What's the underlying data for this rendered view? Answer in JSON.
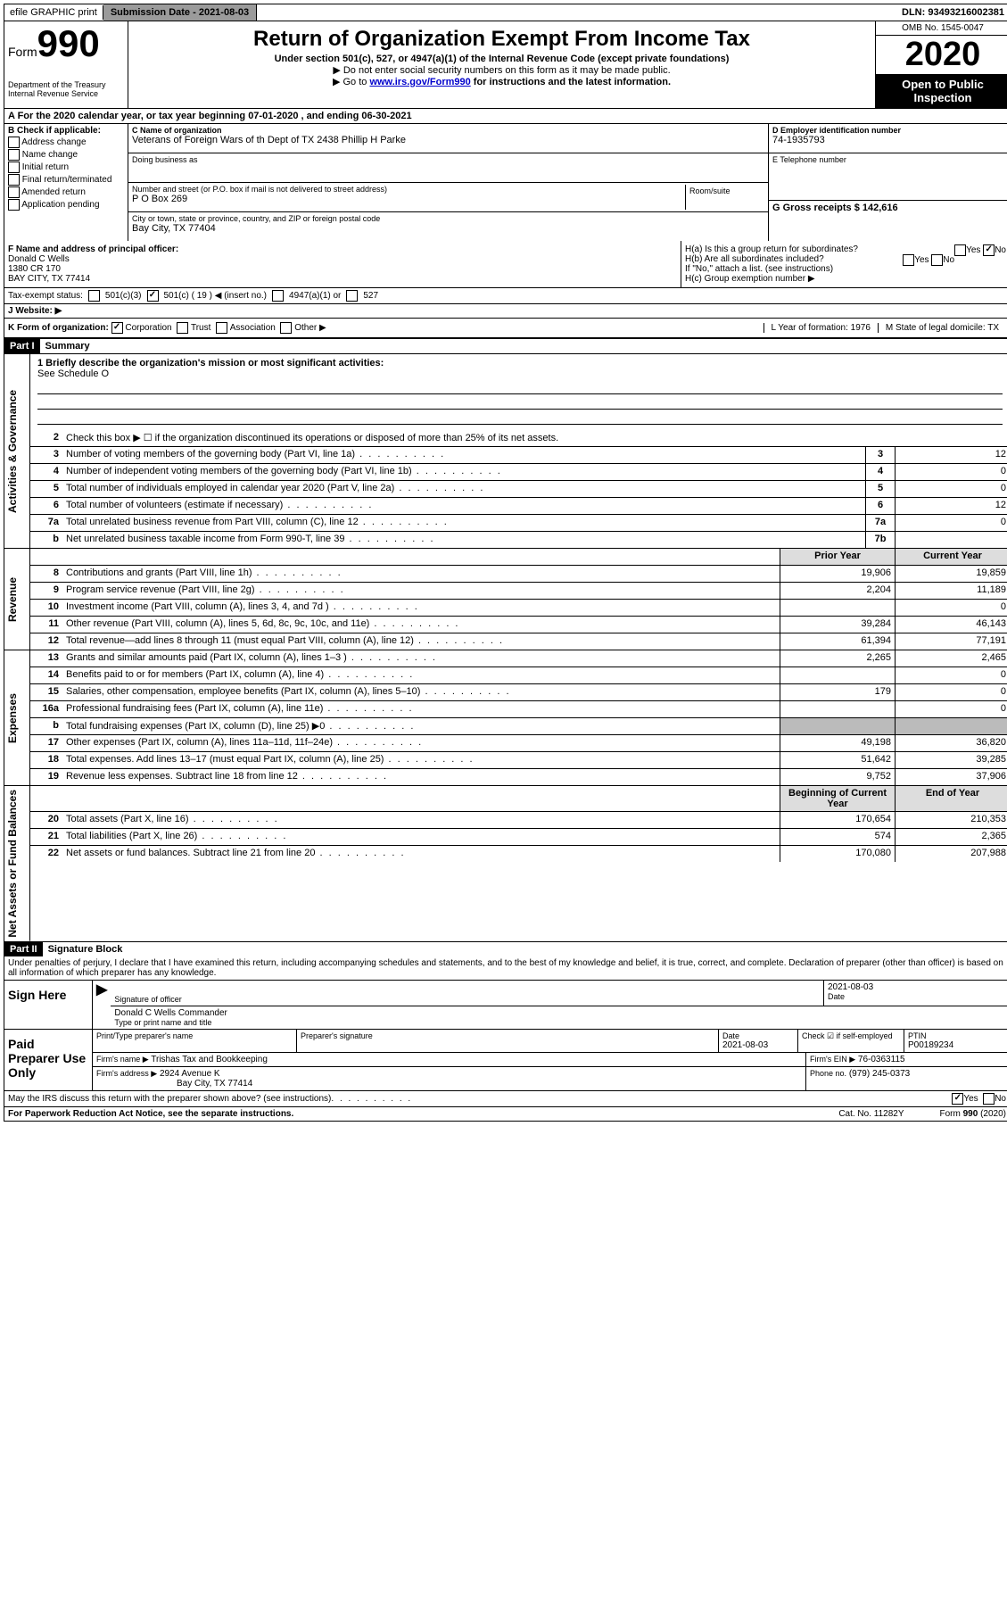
{
  "topbar": {
    "efile": "efile GRAPHIC print",
    "submission_label": "Submission Date - 2021-08-03",
    "dln": "DLN: 93493216002381"
  },
  "header": {
    "form_word": "Form",
    "form_number": "990",
    "title": "Return of Organization Exempt From Income Tax",
    "subtitle": "Under section 501(c), 527, or 4947(a)(1) of the Internal Revenue Code (except private foundations)",
    "note1": "▶ Do not enter social security numbers on this form as it may be made public.",
    "note2_pre": "▶ Go to ",
    "note2_link": "www.irs.gov/Form990",
    "note2_post": " for instructions and the latest information.",
    "omb": "OMB No. 1545-0047",
    "year": "2020",
    "open": "Open to Public Inspection",
    "dept": "Department of the Treasury Internal Revenue Service"
  },
  "line_a": "A For the 2020 calendar year, or tax year beginning 07-01-2020  , and ending 06-30-2021",
  "section_b": {
    "label": "B Check if applicable:",
    "opts": [
      "Address change",
      "Name change",
      "Initial return",
      "Final return/terminated",
      "Amended return",
      "Application pending"
    ]
  },
  "section_c": {
    "name_label": "C Name of organization",
    "name": "Veterans of Foreign Wars of th Dept of TX 2438 Phillip H Parke",
    "dba_label": "Doing business as",
    "addr_label": "Number and street (or P.O. box if mail is not delivered to street address)",
    "room_label": "Room/suite",
    "addr": "P O Box 269",
    "city_label": "City or town, state or province, country, and ZIP or foreign postal code",
    "city": "Bay City, TX  77404"
  },
  "section_d": {
    "ein_label": "D Employer identification number",
    "ein": "74-1935793",
    "tel_label": "E Telephone number",
    "gross_label": "G Gross receipts $ 142,616"
  },
  "section_f": {
    "label": "F  Name and address of principal officer:",
    "name": "Donald C Wells",
    "addr1": "1380 CR 170",
    "addr2": "BAY CITY, TX  77414",
    "ha": "H(a)  Is this a group return for subordinates?",
    "hb": "H(b)  Are all subordinates included?",
    "hb_note": "If \"No,\" attach a list. (see instructions)",
    "hc": "H(c)  Group exemption number ▶",
    "yes": "Yes",
    "no": "No"
  },
  "tax_exempt": {
    "label": "Tax-exempt status:",
    "o1": "501(c)(3)",
    "o2": "501(c) ( 19 ) ◀ (insert no.)",
    "o3": "4947(a)(1) or",
    "o4": "527"
  },
  "website": {
    "label": "J   Website: ▶"
  },
  "k_row": {
    "label": "K Form of organization:",
    "corp": "Corporation",
    "trust": "Trust",
    "assoc": "Association",
    "other": "Other ▶",
    "l": "L Year of formation: 1976",
    "m": "M State of legal domicile: TX"
  },
  "part1": {
    "label": "Part I",
    "title": "Summary",
    "side_gov": "Activities & Governance",
    "side_rev": "Revenue",
    "side_exp": "Expenses",
    "side_net": "Net Assets or Fund Balances",
    "mission_label": "1  Briefly describe the organization's mission or most significant activities:",
    "mission": "See Schedule O",
    "line2": "Check this box ▶ ☐  if the organization discontinued its operations or disposed of more than 25% of its net assets.",
    "rows_single": [
      {
        "n": "3",
        "d": "Number of voting members of the governing body (Part VI, line 1a)",
        "box": "3",
        "v": "12"
      },
      {
        "n": "4",
        "d": "Number of independent voting members of the governing body (Part VI, line 1b)",
        "box": "4",
        "v": "0"
      },
      {
        "n": "5",
        "d": "Total number of individuals employed in calendar year 2020 (Part V, line 2a)",
        "box": "5",
        "v": "0"
      },
      {
        "n": "6",
        "d": "Total number of volunteers (estimate if necessary)",
        "box": "6",
        "v": "12"
      },
      {
        "n": "7a",
        "d": "Total unrelated business revenue from Part VIII, column (C), line 12",
        "box": "7a",
        "v": "0"
      },
      {
        "n": "b",
        "d": "Net unrelated business taxable income from Form 990-T, line 39",
        "box": "7b",
        "v": ""
      }
    ],
    "col_prior": "Prior Year",
    "col_current": "Current Year",
    "col_begin": "Beginning of Current Year",
    "col_end": "End of Year",
    "rows_rev": [
      {
        "n": "8",
        "d": "Contributions and grants (Part VIII, line 1h)",
        "p": "19,906",
        "c": "19,859"
      },
      {
        "n": "9",
        "d": "Program service revenue (Part VIII, line 2g)",
        "p": "2,204",
        "c": "11,189"
      },
      {
        "n": "10",
        "d": "Investment income (Part VIII, column (A), lines 3, 4, and 7d )",
        "p": "",
        "c": "0"
      },
      {
        "n": "11",
        "d": "Other revenue (Part VIII, column (A), lines 5, 6d, 8c, 9c, 10c, and 11e)",
        "p": "39,284",
        "c": "46,143"
      },
      {
        "n": "12",
        "d": "Total revenue—add lines 8 through 11 (must equal Part VIII, column (A), line 12)",
        "p": "61,394",
        "c": "77,191"
      }
    ],
    "rows_exp": [
      {
        "n": "13",
        "d": "Grants and similar amounts paid (Part IX, column (A), lines 1–3 )",
        "p": "2,265",
        "c": "2,465"
      },
      {
        "n": "14",
        "d": "Benefits paid to or for members (Part IX, column (A), line 4)",
        "p": "",
        "c": "0"
      },
      {
        "n": "15",
        "d": "Salaries, other compensation, employee benefits (Part IX, column (A), lines 5–10)",
        "p": "179",
        "c": "0"
      },
      {
        "n": "16a",
        "d": "Professional fundraising fees (Part IX, column (A), line 11e)",
        "p": "",
        "c": "0"
      },
      {
        "n": "b",
        "d": "Total fundraising expenses (Part IX, column (D), line 25) ▶0",
        "p": "grey",
        "c": "grey"
      },
      {
        "n": "17",
        "d": "Other expenses (Part IX, column (A), lines 11a–11d, 11f–24e)",
        "p": "49,198",
        "c": "36,820"
      },
      {
        "n": "18",
        "d": "Total expenses. Add lines 13–17 (must equal Part IX, column (A), line 25)",
        "p": "51,642",
        "c": "39,285"
      },
      {
        "n": "19",
        "d": "Revenue less expenses. Subtract line 18 from line 12",
        "p": "9,752",
        "c": "37,906"
      }
    ],
    "rows_net": [
      {
        "n": "20",
        "d": "Total assets (Part X, line 16)",
        "p": "170,654",
        "c": "210,353"
      },
      {
        "n": "21",
        "d": "Total liabilities (Part X, line 26)",
        "p": "574",
        "c": "2,365"
      },
      {
        "n": "22",
        "d": "Net assets or fund balances. Subtract line 21 from line 20",
        "p": "170,080",
        "c": "207,988"
      }
    ]
  },
  "part2": {
    "label": "Part II",
    "title": "Signature Block",
    "perjury": "Under penalties of perjury, I declare that I have examined this return, including accompanying schedules and statements, and to the best of my knowledge and belief, it is true, correct, and complete. Declaration of preparer (other than officer) is based on all information of which preparer has any knowledge.",
    "sign_here": "Sign Here",
    "sig_officer": "Signature of officer",
    "date": "2021-08-03",
    "date_label": "Date",
    "officer_name": "Donald C Wells  Commander",
    "type_name": "Type or print name and title",
    "paid": "Paid Preparer Use Only",
    "prep_name_label": "Print/Type preparer's name",
    "prep_sig_label": "Preparer's signature",
    "prep_date_label": "Date",
    "prep_date": "2021-08-03",
    "check_self": "Check ☑ if self-employed",
    "ptin_label": "PTIN",
    "ptin": "P00189234",
    "firm_name_label": "Firm's name   ▶",
    "firm_name": "Trishas Tax and Bookkeeping",
    "firm_ein_label": "Firm's EIN ▶",
    "firm_ein": "76-0363115",
    "firm_addr_label": "Firm's address ▶",
    "firm_addr": "2924 Avenue K",
    "firm_city": "Bay City, TX  77414",
    "phone_label": "Phone no.",
    "phone": "(979) 245-0373",
    "discuss": "May the IRS discuss this return with the preparer shown above? (see instructions)",
    "yes": "Yes",
    "no": "No"
  },
  "footer": {
    "paperwork": "For Paperwork Reduction Act Notice, see the separate instructions.",
    "cat": "Cat. No. 11282Y",
    "form": "Form 990 (2020)"
  }
}
